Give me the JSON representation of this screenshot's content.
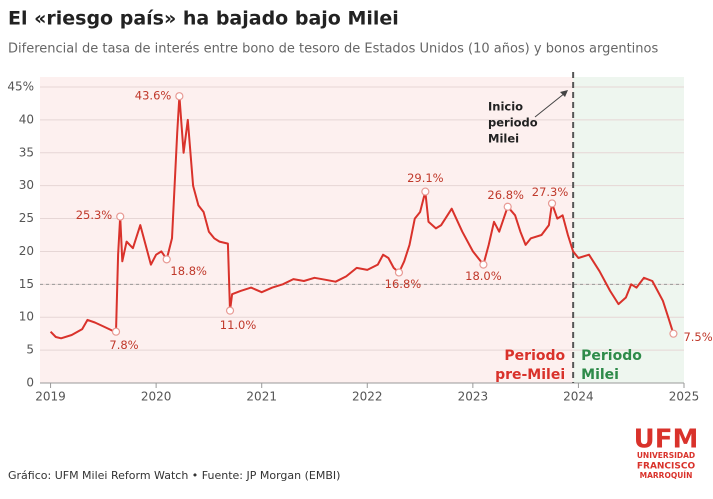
{
  "chart_data": {
    "type": "line",
    "title": "El «riesgo país» ha bajado bajo Milei",
    "subtitle": "Diferencial de tasa de interés entre bono de tesoro de Estados Unidos (10 años) y bonos argentinos",
    "source": "Gráfico: UFM Milei Reform Watch • Fuente: JP Morgan (EMBI)",
    "logo": {
      "name": "UFM",
      "lines": [
        "UNIVERSIDAD",
        "FRANCISCO",
        "MARROQUÍN"
      ]
    },
    "color": "#d9322b",
    "xlim": [
      2018.9,
      2025
    ],
    "xticks": [
      2019,
      2020,
      2021,
      2022,
      2023,
      2024,
      2025
    ],
    "ylim": [
      0,
      45
    ],
    "yticks": [
      0,
      5,
      10,
      15,
      20,
      25,
      30,
      35,
      40,
      {
        "value": 45,
        "label": "45%"
      }
    ],
    "grid": true,
    "reference_line": 15,
    "milei_start": {
      "x": 2023.95,
      "label": [
        "Inicio",
        "periodo",
        "Milei"
      ]
    },
    "pre_milei_label": [
      "Periodo",
      "pre-Milei"
    ],
    "milei_label": [
      "Periodo",
      "Milei"
    ],
    "x": [
      2019.0,
      2019.05,
      2019.1,
      2019.2,
      2019.3,
      2019.35,
      2019.42,
      2019.5,
      2019.58,
      2019.62,
      2019.64,
      2019.66,
      2019.68,
      2019.72,
      2019.78,
      2019.85,
      2019.9,
      2019.95,
      2020.0,
      2020.05,
      2020.1,
      2020.15,
      2020.2,
      2020.22,
      2020.26,
      2020.3,
      2020.35,
      2020.4,
      2020.45,
      2020.5,
      2020.55,
      2020.6,
      2020.68,
      2020.7,
      2020.72,
      2020.8,
      2020.9,
      2021.0,
      2021.1,
      2021.2,
      2021.3,
      2021.4,
      2021.5,
      2021.6,
      2021.7,
      2021.8,
      2021.9,
      2022.0,
      2022.1,
      2022.15,
      2022.2,
      2022.25,
      2022.3,
      2022.35,
      2022.4,
      2022.45,
      2022.5,
      2022.55,
      2022.58,
      2022.65,
      2022.7,
      2022.8,
      2022.9,
      2023.0,
      2023.1,
      2023.15,
      2023.2,
      2023.25,
      2023.33,
      2023.4,
      2023.45,
      2023.5,
      2023.55,
      2023.65,
      2023.72,
      2023.75,
      2023.8,
      2023.85,
      2023.9,
      2023.95,
      2024.0,
      2024.1,
      2024.2,
      2024.3,
      2024.38,
      2024.45,
      2024.5,
      2024.55,
      2024.62,
      2024.7,
      2024.75,
      2024.8,
      2024.85,
      2024.9
    ],
    "values": [
      7.8,
      7.0,
      6.8,
      7.3,
      8.2,
      9.6,
      9.2,
      8.6,
      8.0,
      7.8,
      19.5,
      25.3,
      18.5,
      21.5,
      20.5,
      24.0,
      21.0,
      18.0,
      19.5,
      20.0,
      18.8,
      22.0,
      38.0,
      43.6,
      35.0,
      40.0,
      30.0,
      27.0,
      26.0,
      23.0,
      22.0,
      21.5,
      21.2,
      11.0,
      13.5,
      14.0,
      14.5,
      13.8,
      14.5,
      15.0,
      15.8,
      15.5,
      16.0,
      15.7,
      15.4,
      16.2,
      17.5,
      17.2,
      18.0,
      19.5,
      19.0,
      17.5,
      16.8,
      18.5,
      21.0,
      25.0,
      26.0,
      29.1,
      24.5,
      23.5,
      24.0,
      26.5,
      23.0,
      20.0,
      18.0,
      21.0,
      24.5,
      23.0,
      26.8,
      25.5,
      23.0,
      21.0,
      22.0,
      22.5,
      24.0,
      27.3,
      25.0,
      25.5,
      22.5,
      20.0,
      19.0,
      19.5,
      17.0,
      14.0,
      12.0,
      13.0,
      15.0,
      14.5,
      16.0,
      15.5,
      14.0,
      12.5,
      10.0,
      7.5
    ],
    "annotations": [
      {
        "x": 2019.62,
        "y": 7.8,
        "label": "7.8%"
      },
      {
        "x": 2019.66,
        "y": 25.3,
        "label": "25.3%"
      },
      {
        "x": 2020.22,
        "y": 43.6,
        "label": "43.6%"
      },
      {
        "x": 2020.1,
        "y": 18.8,
        "label": "18.8%"
      },
      {
        "x": 2020.7,
        "y": 11.0,
        "label": "11.0%"
      },
      {
        "x": 2022.3,
        "y": 16.8,
        "label": "16.8%"
      },
      {
        "x": 2022.55,
        "y": 29.1,
        "label": "29.1%"
      },
      {
        "x": 2023.1,
        "y": 18.0,
        "label": "18.0%"
      },
      {
        "x": 2023.33,
        "y": 26.8,
        "label": "26.8%"
      },
      {
        "x": 2023.75,
        "y": 27.3,
        "label": "27.3%"
      },
      {
        "x": 2024.9,
        "y": 7.5,
        "label": "7.5%"
      }
    ]
  }
}
